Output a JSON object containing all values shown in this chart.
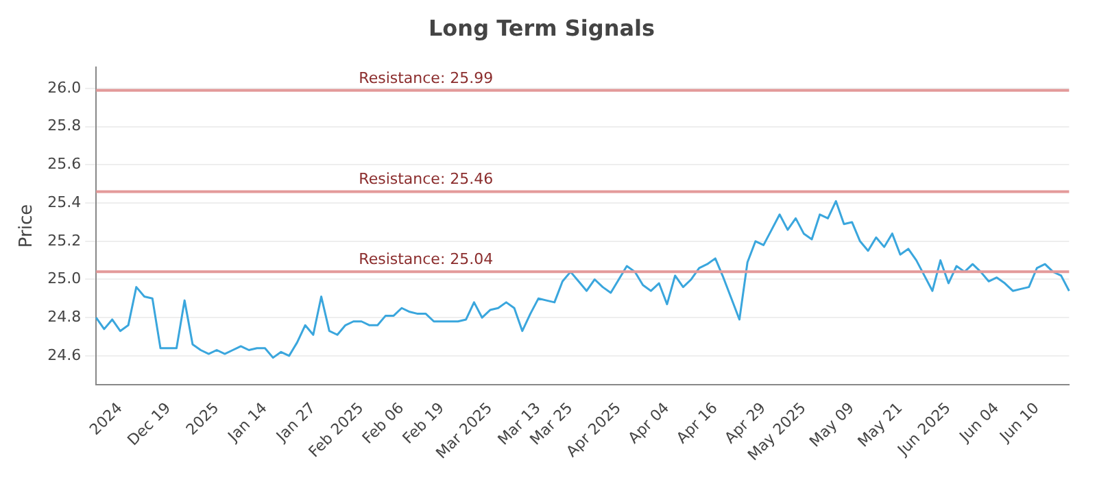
{
  "chart_data": {
    "type": "line",
    "title": "Long Term Signals",
    "ylabel": "Price",
    "categories": [
      null,
      null,
      null,
      "2024",
      null,
      null,
      null,
      null,
      null,
      "Dec 19",
      null,
      null,
      null,
      null,
      null,
      "2025",
      null,
      null,
      null,
      null,
      null,
      "Jan 14",
      null,
      null,
      null,
      null,
      null,
      "Jan 27",
      null,
      null,
      null,
      null,
      null,
      "Feb 2025",
      null,
      null,
      null,
      null,
      "Feb 06",
      null,
      null,
      null,
      null,
      "Feb 19",
      null,
      null,
      null,
      null,
      null,
      "Mar 2025",
      null,
      null,
      null,
      null,
      null,
      "Mar 13",
      null,
      null,
      null,
      "Mar 25",
      null,
      null,
      null,
      null,
      null,
      "Apr 2025",
      null,
      null,
      null,
      null,
      null,
      "Apr 04",
      null,
      null,
      null,
      null,
      null,
      "Apr 16",
      null,
      null,
      null,
      null,
      null,
      "Apr 29",
      null,
      null,
      null,
      null,
      "May 2025",
      null,
      null,
      null,
      null,
      null,
      "May 09",
      null,
      null,
      null,
      null,
      null,
      "May 21",
      null,
      null,
      null,
      null,
      null,
      "Jun 2025",
      null,
      null,
      null,
      null,
      null,
      "Jun 04",
      null,
      null,
      null,
      null,
      "Jun 10",
      null,
      null,
      null,
      null
    ],
    "series": [
      {
        "color": "#3aa6dd",
        "values": [
          24.8,
          24.74,
          24.79,
          24.73,
          24.76,
          24.96,
          24.91,
          24.9,
          24.64,
          24.64,
          24.64,
          24.89,
          24.66,
          24.63,
          24.61,
          24.63,
          24.61,
          24.63,
          24.65,
          24.63,
          24.64,
          24.64,
          24.59,
          24.62,
          24.6,
          24.67,
          24.76,
          24.71,
          24.91,
          24.73,
          24.71,
          24.76,
          24.78,
          24.78,
          24.76,
          24.76,
          24.81,
          24.81,
          24.85,
          24.83,
          24.82,
          24.82,
          24.78,
          24.78,
          24.78,
          24.78,
          24.79,
          24.88,
          24.8,
          24.84,
          24.85,
          24.88,
          24.85,
          24.73,
          24.82,
          24.9,
          24.89,
          24.88,
          24.99,
          25.04,
          24.99,
          24.94,
          25.0,
          24.96,
          24.93,
          25.0,
          25.07,
          25.04,
          24.97,
          24.94,
          24.98,
          24.87,
          25.02,
          24.96,
          25.0,
          25.06,
          25.08,
          25.11,
          25.01,
          24.9,
          24.79,
          25.09,
          25.2,
          25.18,
          25.26,
          25.34,
          25.26,
          25.32,
          25.24,
          25.21,
          25.34,
          25.32,
          25.41,
          25.29,
          25.3,
          25.2,
          25.15,
          25.22,
          25.17,
          25.24,
          25.13,
          25.16,
          25.1,
          25.02,
          24.94,
          25.1,
          24.98,
          25.07,
          25.04,
          25.08,
          25.04,
          24.99,
          25.01,
          24.98,
          24.94,
          24.95,
          24.96,
          25.06,
          25.08,
          25.04,
          25.02,
          24.94
        ]
      }
    ],
    "ylim": [
      24.45,
      26.11
    ],
    "yticks": [
      24.6,
      24.8,
      {
        "value": 25,
        "label": "25.0"
      },
      25.2,
      25.4,
      25.6,
      25.8,
      {
        "value": 26,
        "label": "26.0"
      }
    ],
    "ref_lines": [
      {
        "axis": "y",
        "value": 25.99,
        "label": "Resistance: 25.99",
        "color": "#e39a9a"
      },
      {
        "axis": "y",
        "value": 25.46,
        "label": "Resistance: 25.46",
        "color": "#e39a9a"
      },
      {
        "axis": "y",
        "value": 25.04,
        "label": "Resistance: 25.04",
        "color": "#e39a9a"
      }
    ],
    "grid": "y",
    "legend": false,
    "marker": "none",
    "line_style": "solid"
  }
}
